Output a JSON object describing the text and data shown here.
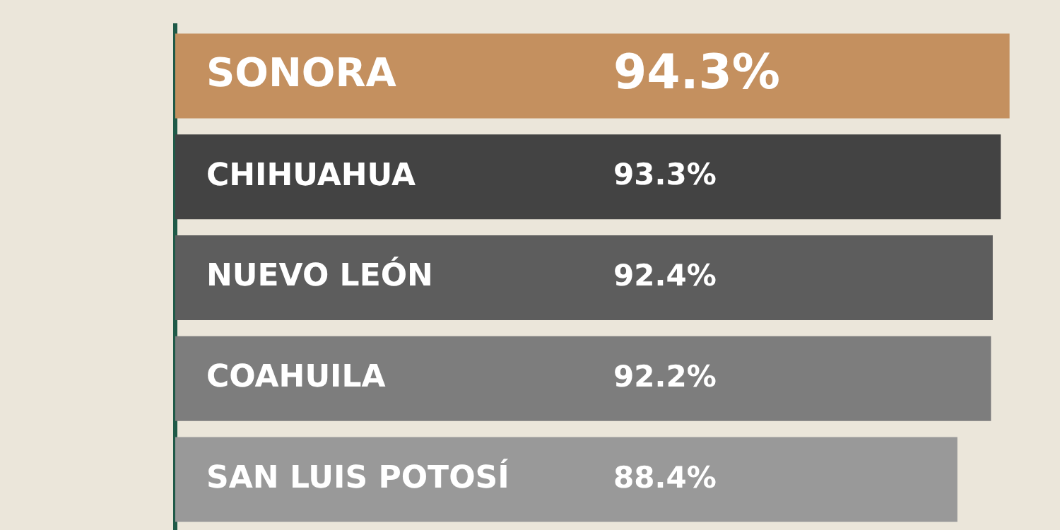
{
  "chart_data": {
    "type": "bar",
    "orientation": "horizontal",
    "categories": [
      "SONORA",
      "CHIHUAHUA",
      "NUEVO LEÓN",
      "COAHUILA",
      "SAN LUIS POTOSÍ"
    ],
    "values": [
      94.3,
      93.3,
      92.4,
      92.2,
      88.4
    ],
    "value_labels": [
      "94.3%",
      "93.3%",
      "92.4%",
      "92.2%",
      "88.4%"
    ],
    "colors": [
      "#c4905f",
      "#434343",
      "#5d5d5d",
      "#7d7d7d",
      "#999999"
    ],
    "tick_labels": "y",
    "legend": false
  }
}
